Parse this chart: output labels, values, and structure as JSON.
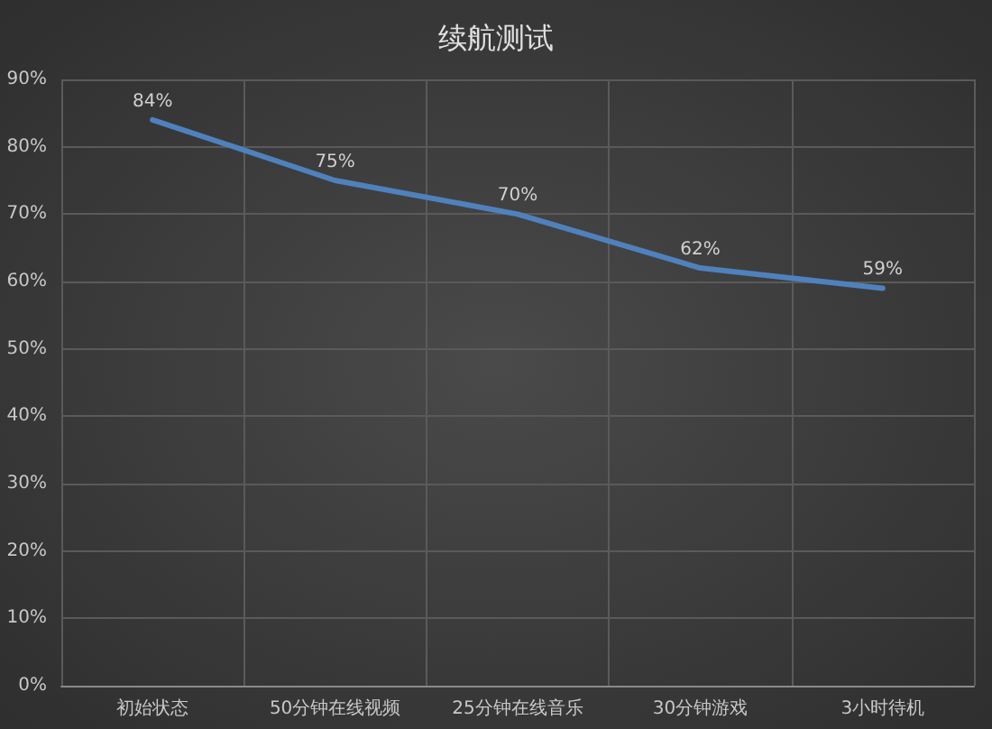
{
  "chart_data": {
    "type": "line",
    "title": "续航测试",
    "categories": [
      "初始状态",
      "50分钟在线视频",
      "25分钟在线音乐",
      "30分钟游戏",
      "3小时待机"
    ],
    "series": [
      {
        "color": "#4f81bd",
        "values": [
          84,
          75,
          70,
          62,
          59
        ],
        "value_labels": [
          "84%",
          "75%",
          "70%",
          "62%",
          "59%"
        ]
      }
    ],
    "ylim": [
      0,
      90
    ],
    "yticks": [
      {
        "value": 0,
        "label": "0%"
      },
      {
        "value": 10,
        "label": "10%"
      },
      {
        "value": 20,
        "label": "20%"
      },
      {
        "value": 30,
        "label": "30%"
      },
      {
        "value": 40,
        "label": "40%"
      },
      {
        "value": 50,
        "label": "50%"
      },
      {
        "value": 60,
        "label": "60%"
      },
      {
        "value": 70,
        "label": "70%"
      },
      {
        "value": 80,
        "label": "80%"
      },
      {
        "value": 90,
        "label": "90%"
      }
    ],
    "grid": true,
    "marker": "none",
    "line_style": "solid"
  }
}
